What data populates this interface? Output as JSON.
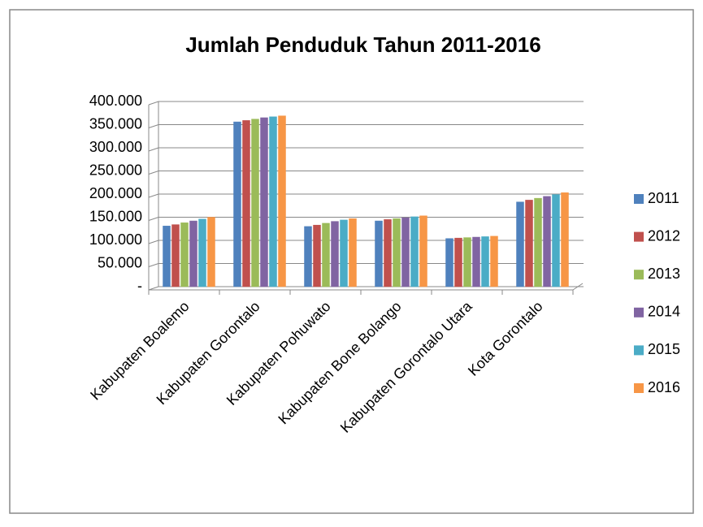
{
  "chart_data": {
    "type": "bar",
    "title": "Jumlah Penduduk Tahun 2011-2016",
    "categories": [
      "Kabupaten  Boalemo",
      "Kabupaten Gorontalo",
      "Kabupaten Pohuwato",
      "Kabupaten Bone Bolango",
      "Kabupaten Gorontalo Utara",
      "Kota Gorontalo"
    ],
    "series": [
      {
        "name": "2011",
        "color": "#4f81bd",
        "values": [
          131000,
          356000,
          130000,
          142000,
          104000,
          183000
        ]
      },
      {
        "name": "2012",
        "color": "#c0504d",
        "values": [
          134000,
          359000,
          133000,
          145000,
          105000,
          187000
        ]
      },
      {
        "name": "2013",
        "color": "#9bbb59",
        "values": [
          138000,
          362000,
          137000,
          147000,
          106000,
          191000
        ]
      },
      {
        "name": "2014",
        "color": "#8064a2",
        "values": [
          142000,
          365000,
          141000,
          149000,
          107000,
          195000
        ]
      },
      {
        "name": "2015",
        "color": "#4bacc6",
        "values": [
          146000,
          367000,
          144000,
          151000,
          108000,
          199000
        ]
      },
      {
        "name": "2016",
        "color": "#f79646",
        "values": [
          150000,
          369000,
          147000,
          153000,
          109000,
          203000
        ]
      }
    ],
    "ylim": [
      0,
      400000
    ],
    "yticks": [
      {
        "value": 0,
        "label": "-"
      },
      {
        "value": 50000,
        "label": "50.000"
      },
      {
        "value": 100000,
        "label": "100.000"
      },
      {
        "value": 150000,
        "label": "150.000"
      },
      {
        "value": 200000,
        "label": "200.000"
      },
      {
        "value": 250000,
        "label": "250.000"
      },
      {
        "value": 300000,
        "label": "300.000"
      },
      {
        "value": 350000,
        "label": "350.000"
      },
      {
        "value": 400000,
        "label": "400.000"
      }
    ],
    "grid": true,
    "legend": "right"
  }
}
